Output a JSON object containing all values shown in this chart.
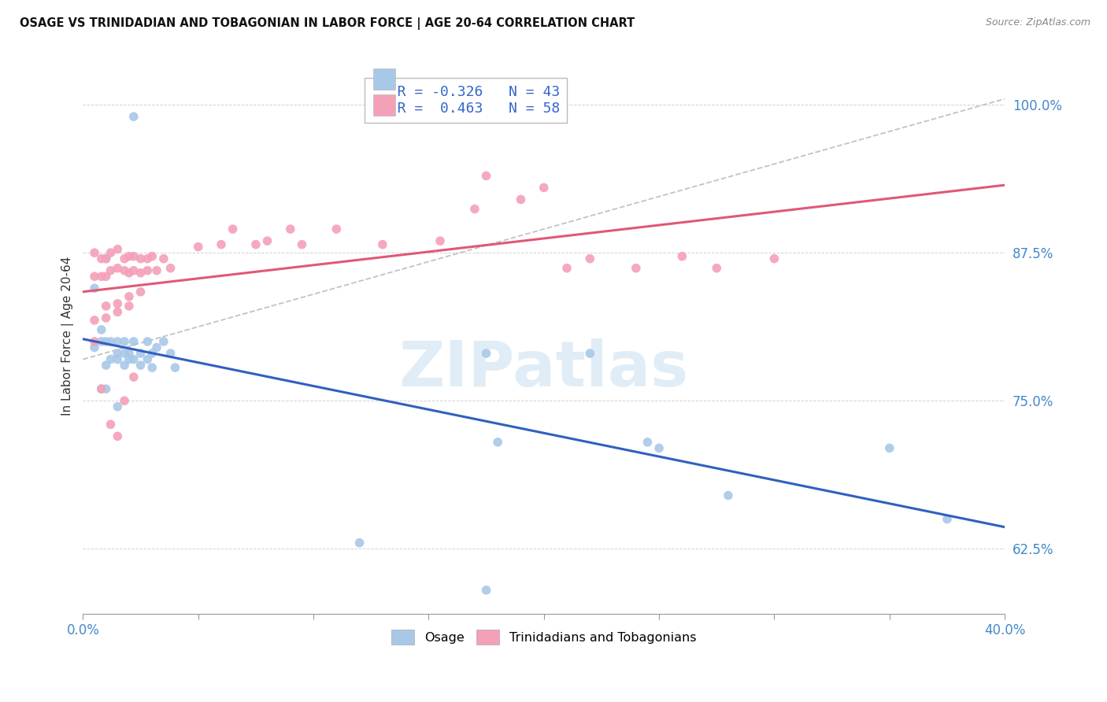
{
  "title": "OSAGE VS TRINIDADIAN AND TOBAGONIAN IN LABOR FORCE | AGE 20-64 CORRELATION CHART",
  "source": "Source: ZipAtlas.com",
  "ylabel": "In Labor Force | Age 20-64",
  "xlim": [
    0.0,
    0.4
  ],
  "ylim": [
    0.57,
    1.04
  ],
  "yticks": [
    0.625,
    0.75,
    0.875,
    1.0
  ],
  "ytick_labels": [
    "62.5%",
    "75.0%",
    "87.5%",
    "100.0%"
  ],
  "xticks": [
    0.0,
    0.05,
    0.1,
    0.15,
    0.2,
    0.25,
    0.3,
    0.35,
    0.4
  ],
  "xtick_labels": [
    "0.0%",
    "",
    "",
    "",
    "",
    "",
    "",
    "",
    "40.0%"
  ],
  "osage_color": "#a8c8e8",
  "trinidadian_color": "#f4a0b8",
  "osage_R": -0.326,
  "osage_N": 43,
  "trinidadian_R": 0.463,
  "trinidadian_N": 58,
  "line_osage_color": "#3060c0",
  "line_trinidadian_color": "#e05878",
  "line_diagonal_color": "#b8b8b8",
  "watermark": "ZIPatlas",
  "osage_x": [
    0.022,
    0.01,
    0.005,
    0.008,
    0.005,
    0.008,
    0.01,
    0.012,
    0.015,
    0.01,
    0.012,
    0.015,
    0.018,
    0.015,
    0.018,
    0.018,
    0.02,
    0.02,
    0.022,
    0.022,
    0.025,
    0.025,
    0.028,
    0.028,
    0.03,
    0.03,
    0.032,
    0.035,
    0.038,
    0.04,
    0.008,
    0.01,
    0.015,
    0.175,
    0.18,
    0.22,
    0.245,
    0.25,
    0.28,
    0.35,
    0.375,
    0.12,
    0.175
  ],
  "osage_y": [
    0.99,
    0.87,
    0.845,
    0.81,
    0.795,
    0.8,
    0.8,
    0.8,
    0.8,
    0.78,
    0.785,
    0.79,
    0.8,
    0.785,
    0.79,
    0.78,
    0.79,
    0.785,
    0.8,
    0.785,
    0.79,
    0.78,
    0.8,
    0.785,
    0.79,
    0.778,
    0.795,
    0.8,
    0.79,
    0.778,
    0.76,
    0.76,
    0.745,
    0.79,
    0.715,
    0.79,
    0.715,
    0.71,
    0.67,
    0.71,
    0.65,
    0.63,
    0.59
  ],
  "trinidadian_x": [
    0.005,
    0.005,
    0.008,
    0.008,
    0.01,
    0.01,
    0.012,
    0.012,
    0.015,
    0.015,
    0.018,
    0.018,
    0.02,
    0.02,
    0.022,
    0.022,
    0.025,
    0.025,
    0.028,
    0.028,
    0.03,
    0.032,
    0.035,
    0.038,
    0.005,
    0.008,
    0.012,
    0.015,
    0.018,
    0.022,
    0.05,
    0.06,
    0.065,
    0.075,
    0.08,
    0.09,
    0.095,
    0.11,
    0.13,
    0.155,
    0.17,
    0.175,
    0.19,
    0.2,
    0.21,
    0.22,
    0.24,
    0.26,
    0.275,
    0.3,
    0.01,
    0.015,
    0.02,
    0.025,
    0.005,
    0.01,
    0.015,
    0.02
  ],
  "trinidadian_y": [
    0.875,
    0.855,
    0.87,
    0.855,
    0.87,
    0.855,
    0.875,
    0.86,
    0.878,
    0.862,
    0.87,
    0.86,
    0.872,
    0.858,
    0.872,
    0.86,
    0.87,
    0.858,
    0.87,
    0.86,
    0.872,
    0.86,
    0.87,
    0.862,
    0.8,
    0.76,
    0.73,
    0.72,
    0.75,
    0.77,
    0.88,
    0.882,
    0.895,
    0.882,
    0.885,
    0.895,
    0.882,
    0.895,
    0.882,
    0.885,
    0.912,
    0.94,
    0.92,
    0.93,
    0.862,
    0.87,
    0.862,
    0.872,
    0.862,
    0.87,
    0.83,
    0.832,
    0.838,
    0.842,
    0.818,
    0.82,
    0.825,
    0.83
  ]
}
